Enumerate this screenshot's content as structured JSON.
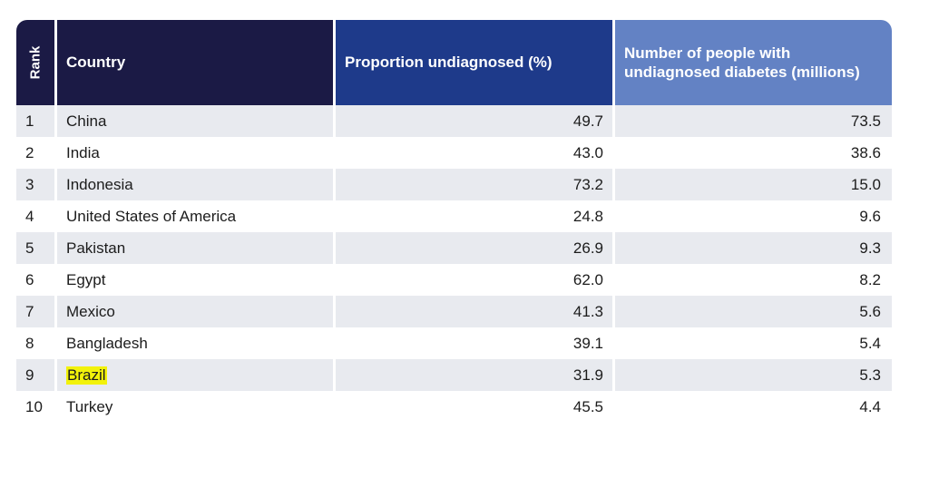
{
  "headers": {
    "rank": "Rank",
    "country": "Country",
    "proportion": "Proportion undiagnosed (%)",
    "number": "Number of people with undiagnosed diabetes (millions)"
  },
  "rows": [
    {
      "rank": "1",
      "country": "China",
      "proportion": "49.7",
      "number": "73.5"
    },
    {
      "rank": "2",
      "country": "India",
      "proportion": "43.0",
      "number": "38.6"
    },
    {
      "rank": "3",
      "country": "Indonesia",
      "proportion": "73.2",
      "number": "15.0"
    },
    {
      "rank": "4",
      "country": "United States of America",
      "proportion": "24.8",
      "number": "9.6"
    },
    {
      "rank": "5",
      "country": "Pakistan",
      "proportion": "26.9",
      "number": "9.3"
    },
    {
      "rank": "6",
      "country": "Egypt",
      "proportion": "62.0",
      "number": "8.2"
    },
    {
      "rank": "7",
      "country": "Mexico",
      "proportion": "41.3",
      "number": "5.6"
    },
    {
      "rank": "8",
      "country": "Bangladesh",
      "proportion": "39.1",
      "number": "5.4"
    },
    {
      "rank": "9",
      "country": "Brazil",
      "proportion": "31.9",
      "number": "5.3",
      "highlighted": true
    },
    {
      "rank": "10",
      "country": "Turkey",
      "proportion": "45.5",
      "number": "4.4"
    }
  ],
  "colors": {
    "header_dark": "#1b1a45",
    "header_blue": "#1e3a8a",
    "header_light": "#6382c4",
    "row_shade": "#e8eaef",
    "highlight": "#f2f20a"
  }
}
